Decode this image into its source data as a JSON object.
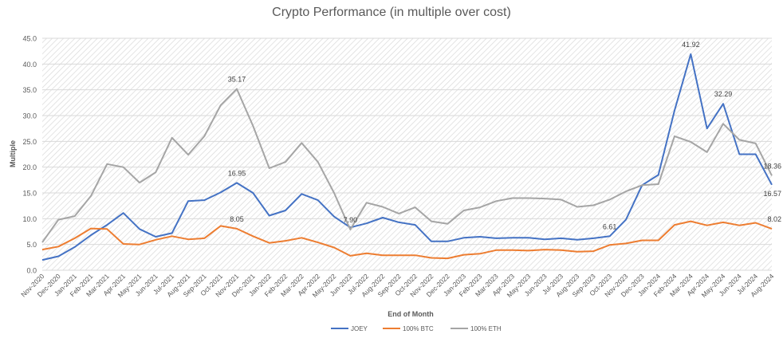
{
  "chart_data": {
    "type": "line",
    "title": "Crypto Performance (in multiple over cost)",
    "xlabel": "End of Month",
    "ylabel": "Multiple",
    "ylim": [
      0,
      45
    ],
    "yticks": [
      "0.0",
      "5.0",
      "10.0",
      "15.0",
      "20.0",
      "25.0",
      "30.0",
      "35.0",
      "40.0",
      "45.0"
    ],
    "grid": true,
    "legend": "bottom",
    "categories": [
      "Nov-2020",
      "Dec-2020",
      "Jan-2021",
      "Feb-2021",
      "Mar-2021",
      "Apr-2021",
      "May-2021",
      "Jun-2021",
      "Jul-2021",
      "Aug-2021",
      "Sep-2021",
      "Oct-2021",
      "Nov-2021",
      "Dec-2021",
      "Jan-2022",
      "Feb-2022",
      "Mar-2022",
      "Apr-2022",
      "May-2022",
      "Jun-2022",
      "Jul-2022",
      "Aug-2022",
      "Sep-2022",
      "Oct-2022",
      "Nov-2022",
      "Dec-2022",
      "Jan-2023",
      "Feb-2023",
      "Mar-2023",
      "Apr-2023",
      "May-2023",
      "Jun-2023",
      "Jul-2023",
      "Aug-2023",
      "Sep-2023",
      "Oct-2023",
      "Nov-2023",
      "Dec-2023",
      "Jan-2024",
      "Feb-2024",
      "Mar-2024",
      "Apr-2024",
      "May-2024",
      "Jun-2024",
      "Jul-2024",
      "Aug-2024"
    ],
    "series": [
      {
        "name": "JOEY",
        "color": "#4472c4",
        "values": [
          2.0,
          2.7,
          4.5,
          6.8,
          8.8,
          11.1,
          8.0,
          6.5,
          7.2,
          13.4,
          13.6,
          15.1,
          16.95,
          15.0,
          10.6,
          11.6,
          14.8,
          13.6,
          10.4,
          8.3,
          9.1,
          10.2,
          9.3,
          8.8,
          5.6,
          5.6,
          6.3,
          6.5,
          6.2,
          6.3,
          6.3,
          6.0,
          6.2,
          5.9,
          6.2,
          6.61,
          9.8,
          16.5,
          18.5,
          31.0,
          41.92,
          27.5,
          32.29,
          22.5,
          22.5,
          16.57
        ],
        "labels": [
          {
            "category": "Nov-2021",
            "text": "16.95"
          },
          {
            "category": "Oct-2023",
            "text": "6.61"
          },
          {
            "category": "Mar-2024",
            "text": "41.92"
          },
          {
            "category": "May-2024",
            "text": "32.29"
          },
          {
            "category": "Aug-2024",
            "text": "16.57",
            "below": true
          }
        ]
      },
      {
        "name": "100% BTC",
        "color": "#ed7d31",
        "values": [
          4.0,
          4.6,
          6.2,
          8.1,
          8.0,
          5.1,
          5.0,
          5.9,
          6.6,
          6.0,
          6.2,
          8.6,
          8.05,
          6.6,
          5.3,
          5.7,
          6.3,
          5.4,
          4.4,
          2.8,
          3.3,
          2.9,
          2.9,
          2.9,
          2.4,
          2.3,
          3.0,
          3.2,
          3.9,
          3.9,
          3.8,
          4.0,
          3.9,
          3.6,
          3.7,
          4.9,
          5.2,
          5.8,
          5.8,
          8.8,
          9.5,
          8.7,
          9.3,
          8.7,
          9.2,
          8.02
        ],
        "labels": [
          {
            "category": "Nov-2021",
            "text": "8.05"
          },
          {
            "category": "Aug-2024",
            "text": "8.02"
          }
        ]
      },
      {
        "name": "100% ETH",
        "color": "#a5a5a5",
        "values": [
          5.4,
          9.8,
          10.5,
          14.4,
          20.6,
          20.0,
          17.0,
          19.0,
          25.7,
          22.4,
          26.0,
          32.0,
          35.17,
          28.0,
          19.8,
          21.0,
          24.7,
          21.0,
          15.0,
          7.9,
          13.1,
          12.3,
          11.0,
          12.2,
          9.5,
          9.0,
          11.6,
          12.2,
          13.4,
          14.0,
          14.0,
          13.9,
          13.7,
          12.3,
          12.6,
          13.7,
          15.3,
          16.5,
          16.7,
          26.0,
          24.9,
          22.9,
          28.4,
          25.3,
          24.6,
          18.36
        ],
        "labels": [
          {
            "category": "Nov-2021",
            "text": "35.17"
          },
          {
            "category": "Jun-2022",
            "text": "7.90"
          },
          {
            "category": "Aug-2024",
            "text": "18.36"
          }
        ]
      }
    ]
  }
}
